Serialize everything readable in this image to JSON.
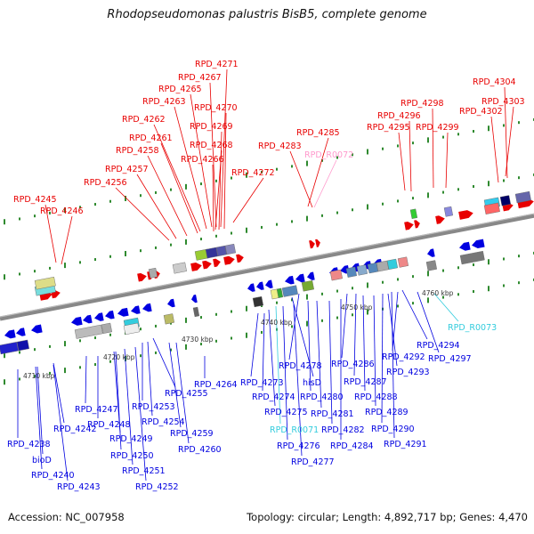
{
  "title": "Rhodopseudomonas palustris BisB5, complete genome",
  "footer": {
    "accession": "Accession: NC_007958",
    "topology": "Topology: circular; Length: 4,892,717 bp; Genes: 4,470"
  },
  "colors": {
    "forward_gene": "#e80000",
    "reverse_gene": "#0000e0",
    "rna_label": "#ff99cc",
    "trna_label": "#33ccdd",
    "backbone": "#888888",
    "tick": "#2f8a2f"
  },
  "scale_labels": [
    "4710 kbp",
    "4720 kbp",
    "4730 kbp",
    "4740 kbp",
    "4750 kbp",
    "4760 kbp"
  ],
  "top_labels": [
    {
      "text": "RPD_4271",
      "color": "red"
    },
    {
      "text": "RPD_4267",
      "color": "red"
    },
    {
      "text": "RPD_4265",
      "color": "red"
    },
    {
      "text": "RPD_4263",
      "color": "red"
    },
    {
      "text": "RPD_4270",
      "color": "red"
    },
    {
      "text": "RPD_4262",
      "color": "red"
    },
    {
      "text": "RPD_4269",
      "color": "red"
    },
    {
      "text": "RPD_4261",
      "color": "red"
    },
    {
      "text": "RPD_4268",
      "color": "red"
    },
    {
      "text": "RPD_4258",
      "color": "red"
    },
    {
      "text": "RPD_4266",
      "color": "red"
    },
    {
      "text": "RPD_4257",
      "color": "red"
    },
    {
      "text": "RPD_4272",
      "color": "red"
    },
    {
      "text": "RPD_4256",
      "color": "red"
    },
    {
      "text": "RPD_4245",
      "color": "red"
    },
    {
      "text": "RPD_4246",
      "color": "red"
    },
    {
      "text": "RPD_4285",
      "color": "red"
    },
    {
      "text": "RPD_4283",
      "color": "red"
    },
    {
      "text": "RPD_R0072",
      "color": "pink"
    },
    {
      "text": "RPD_4304",
      "color": "red"
    },
    {
      "text": "RPD_4298",
      "color": "red"
    },
    {
      "text": "RPD_4303",
      "color": "red"
    },
    {
      "text": "RPD_4296",
      "color": "red"
    },
    {
      "text": "RPD_4302",
      "color": "red"
    },
    {
      "text": "RPD_4295",
      "color": "red"
    },
    {
      "text": "RPD_4299",
      "color": "red"
    }
  ],
  "bottom_labels": [
    {
      "text": "RPD_R0073",
      "color": "cyan"
    },
    {
      "text": "RPD_4294",
      "color": "blue"
    },
    {
      "text": "RPD_4292",
      "color": "blue"
    },
    {
      "text": "RPD_4297",
      "color": "blue"
    },
    {
      "text": "RPD_4293",
      "color": "blue"
    },
    {
      "text": "RPD_4278",
      "color": "blue"
    },
    {
      "text": "RPD_4286",
      "color": "blue"
    },
    {
      "text": "RPD_4273",
      "color": "blue"
    },
    {
      "text": "hisD",
      "color": "blue"
    },
    {
      "text": "RPD_4287",
      "color": "blue"
    },
    {
      "text": "RPD_4274",
      "color": "blue"
    },
    {
      "text": "RPD_4280",
      "color": "blue"
    },
    {
      "text": "RPD_4288",
      "color": "blue"
    },
    {
      "text": "RPD_4275",
      "color": "blue"
    },
    {
      "text": "RPD_4281",
      "color": "blue"
    },
    {
      "text": "RPD_4289",
      "color": "blue"
    },
    {
      "text": "RPD_R0071",
      "color": "cyan"
    },
    {
      "text": "RPD_4282",
      "color": "blue"
    },
    {
      "text": "RPD_4290",
      "color": "blue"
    },
    {
      "text": "RPD_4276",
      "color": "blue"
    },
    {
      "text": "RPD_4284",
      "color": "blue"
    },
    {
      "text": "RPD_4291",
      "color": "blue"
    },
    {
      "text": "RPD_4277",
      "color": "blue"
    },
    {
      "text": "RPD_4264",
      "color": "blue"
    },
    {
      "text": "RPD_4255",
      "color": "blue"
    },
    {
      "text": "RPD_4247",
      "color": "blue"
    },
    {
      "text": "RPD_4253",
      "color": "blue"
    },
    {
      "text": "RPD_4248",
      "color": "blue"
    },
    {
      "text": "RPD_4254",
      "color": "blue"
    },
    {
      "text": "RPD_4242",
      "color": "blue"
    },
    {
      "text": "RPD_4249",
      "color": "blue"
    },
    {
      "text": "RPD_4259",
      "color": "blue"
    },
    {
      "text": "RPD_4238",
      "color": "blue"
    },
    {
      "text": "RPD_4250",
      "color": "blue"
    },
    {
      "text": "RPD_4260",
      "color": "blue"
    },
    {
      "text": "bioD",
      "color": "blue"
    },
    {
      "text": "RPD_4251",
      "color": "blue"
    },
    {
      "text": "RPD_4240",
      "color": "blue"
    },
    {
      "text": "RPD_4243",
      "color": "blue"
    },
    {
      "text": "RPD_4252",
      "color": "blue"
    }
  ]
}
